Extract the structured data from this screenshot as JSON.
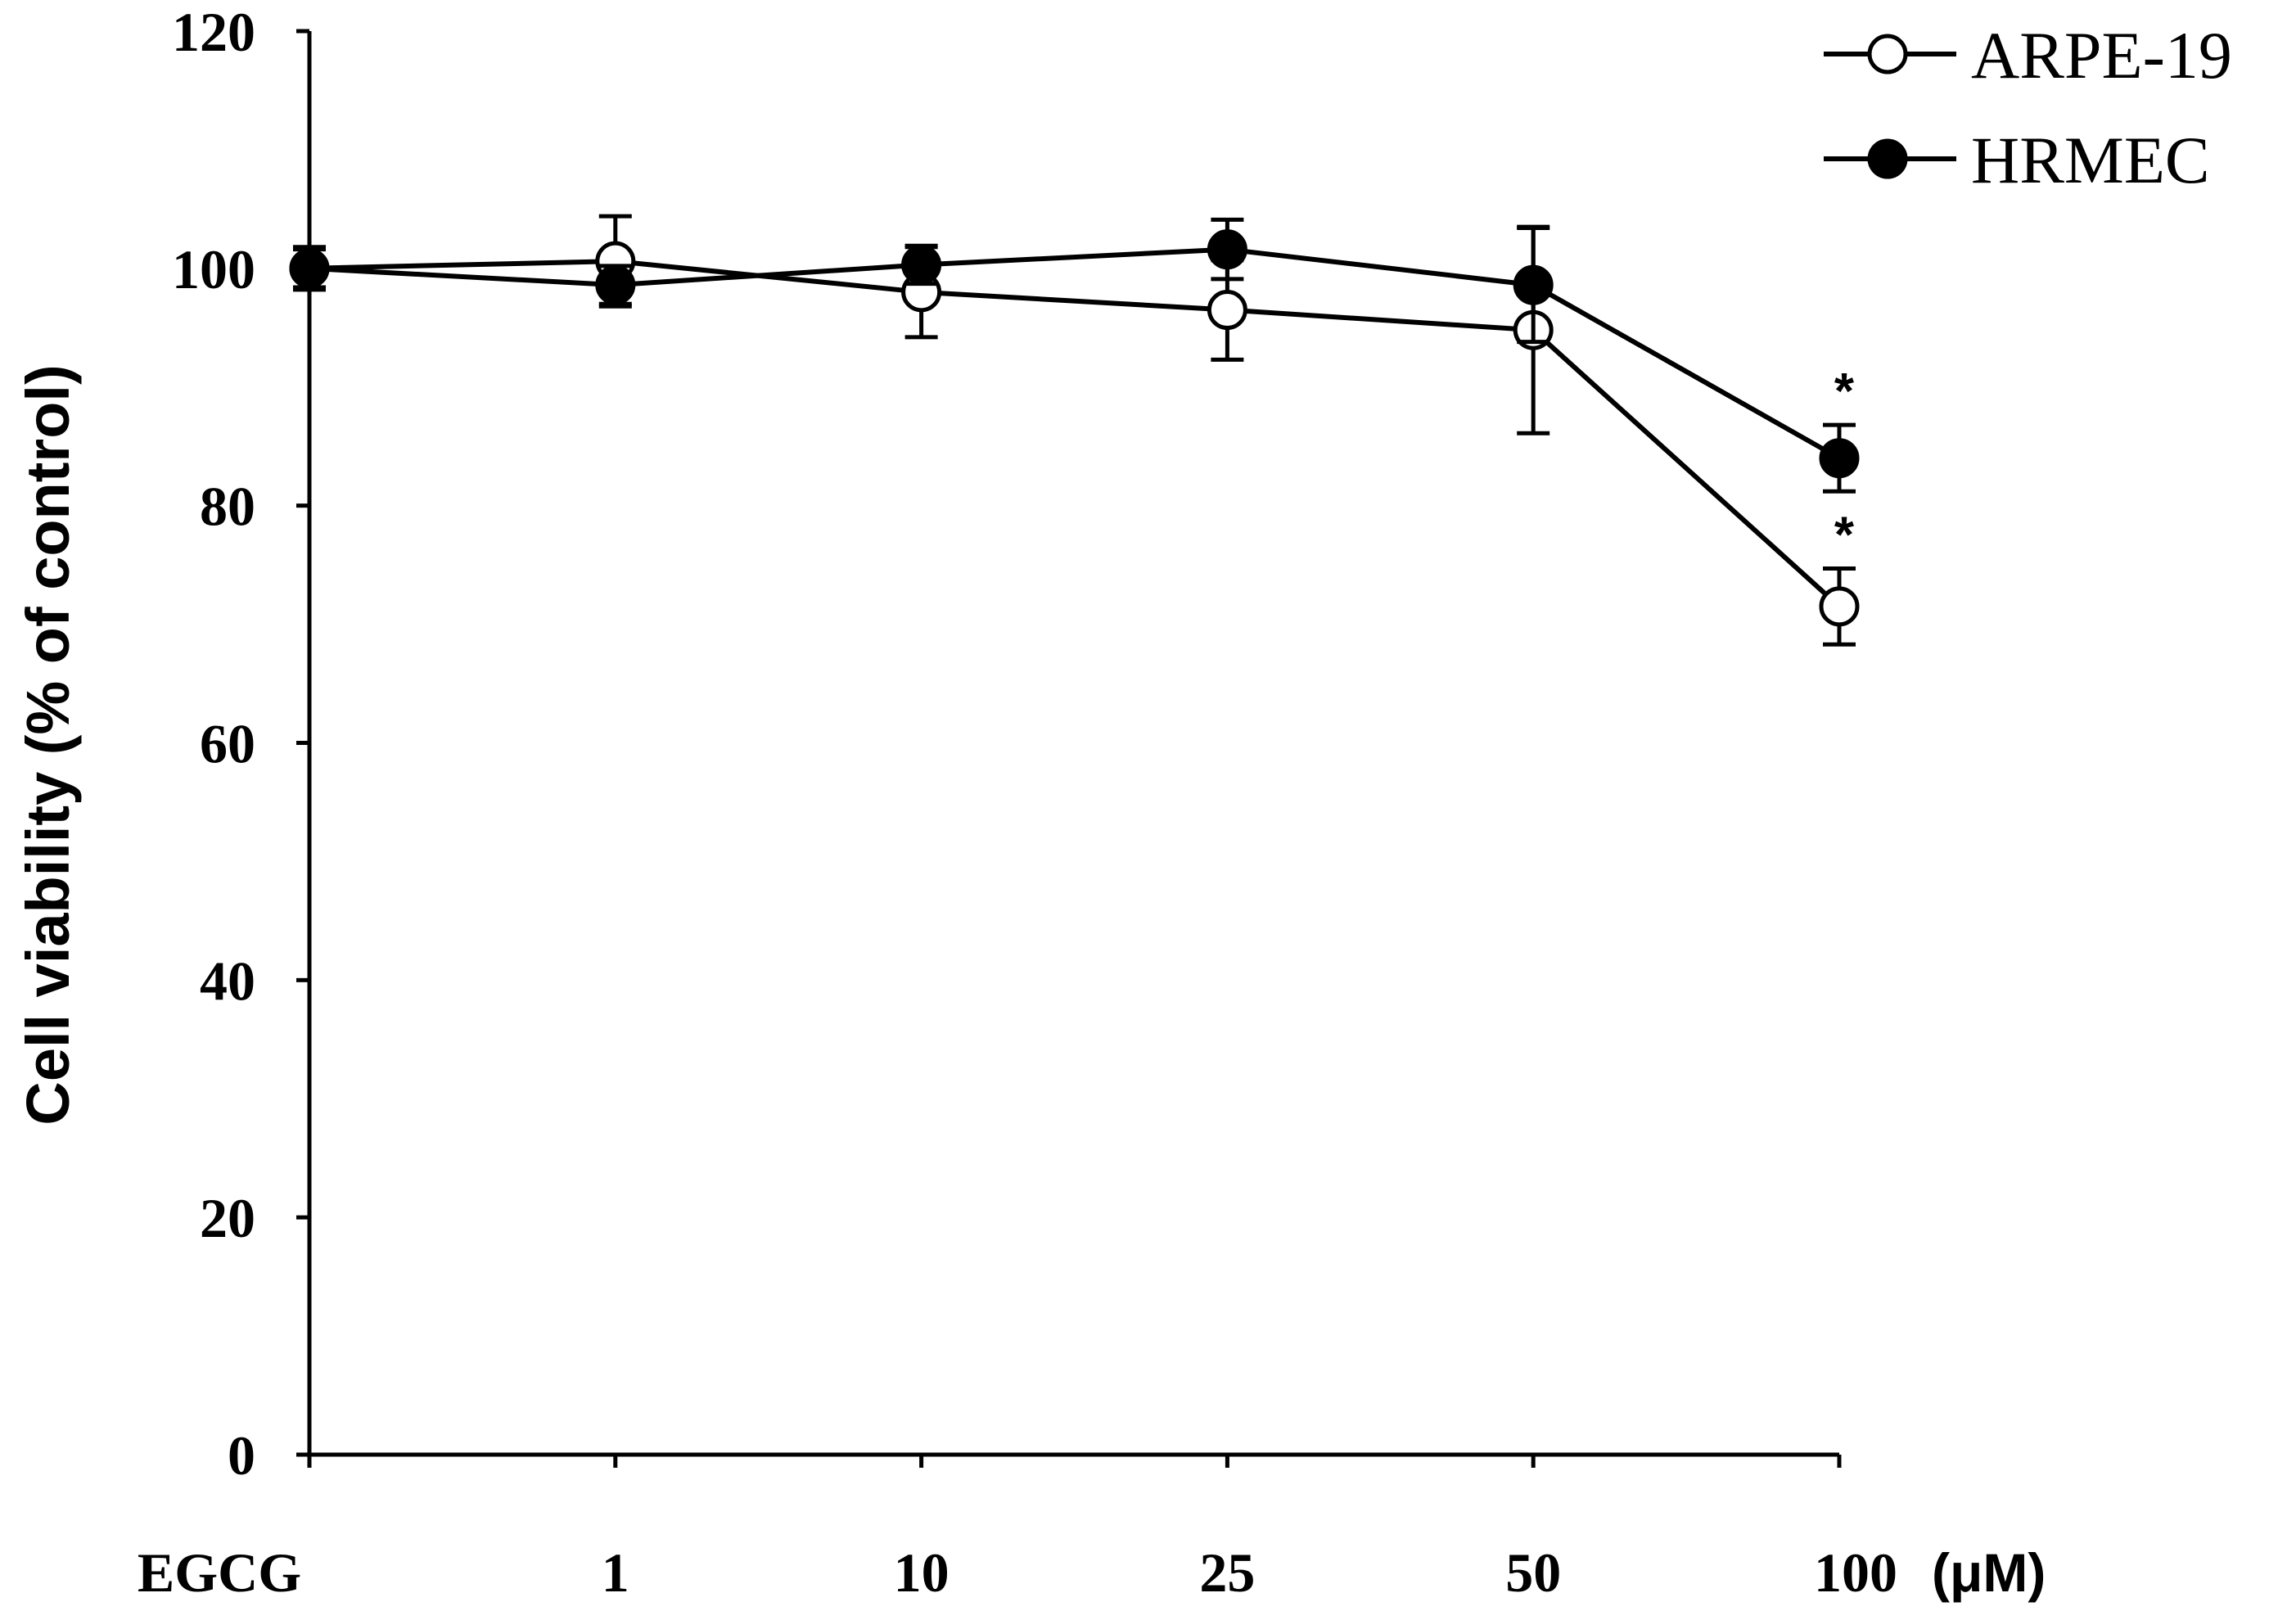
{
  "chart_data": {
    "type": "line",
    "title": "",
    "xlabel": "",
    "ylabel": "Cell viability (% of control)",
    "x_unit": "(μM)",
    "categories": [
      "EGCG",
      "1",
      "10",
      "25",
      "50",
      "100"
    ],
    "ylim": [
      0,
      120
    ],
    "yticks": [
      0,
      20,
      40,
      60,
      80,
      100,
      120
    ],
    "grid": false,
    "legend_position": "top-right",
    "series": [
      {
        "name": "ARPE-19",
        "marker": "open-circle",
        "values": [
          100,
          100.6,
          98.0,
          96.5,
          94.8,
          71.5
        ],
        "errors": [
          1.8,
          3.8,
          3.8,
          4.2,
          8.7,
          3.2
        ],
        "significant": [
          false,
          false,
          false,
          false,
          false,
          true
        ]
      },
      {
        "name": "HRMEC",
        "marker": "filled-circle",
        "values": [
          100,
          98.6,
          100.3,
          101.6,
          98.6,
          84.0
        ],
        "errors": [
          1.6,
          1.6,
          1.6,
          2.5,
          4.8,
          2.8
        ],
        "significant": [
          false,
          false,
          false,
          false,
          false,
          true
        ]
      }
    ],
    "significance_marker": "*"
  }
}
